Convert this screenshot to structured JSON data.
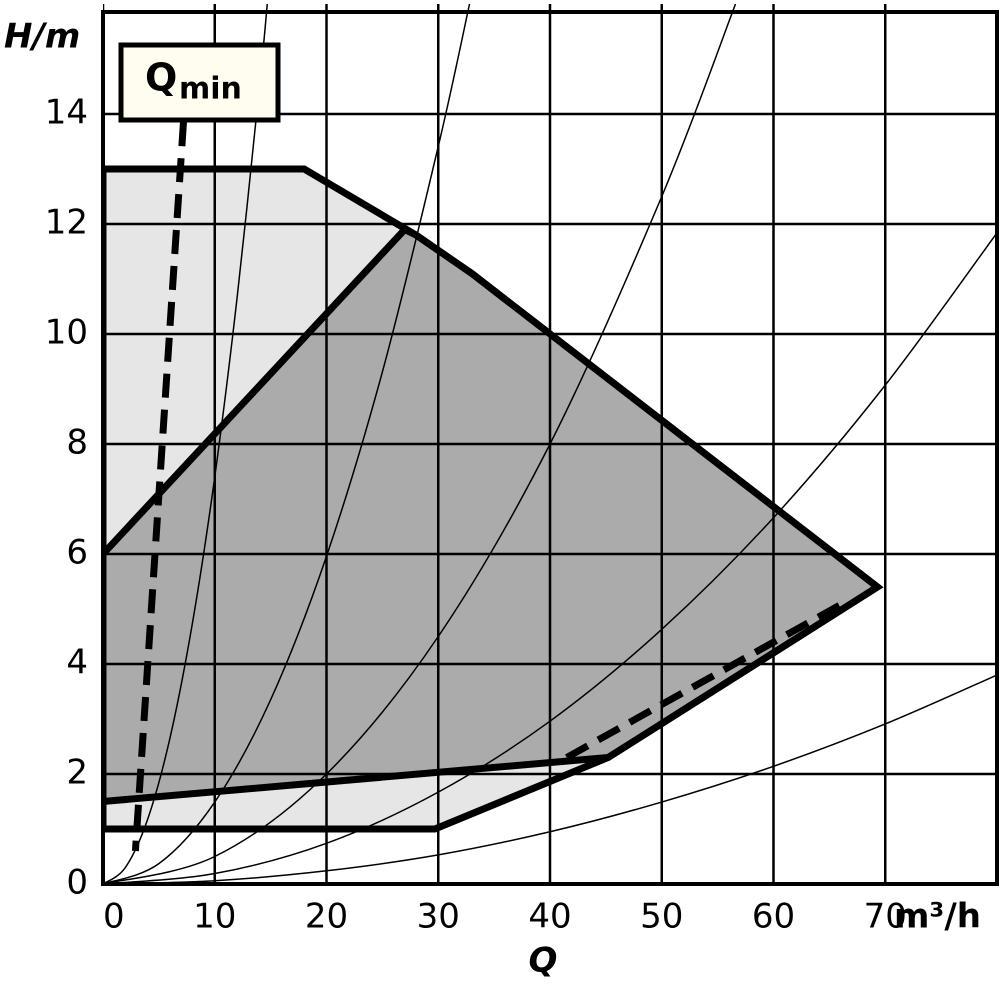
{
  "chart_data": {
    "type": "pump-field",
    "ylabel": "H/m",
    "xlabel": "Q",
    "xunit": "m³/h",
    "annotation": "Q",
    "annotation_sub": "min",
    "xlim": [
      0,
      80
    ],
    "ylim": [
      0,
      16
    ],
    "xticks": [
      0,
      10,
      20,
      30,
      40,
      50,
      60,
      70
    ],
    "yticks": [
      0,
      2,
      4,
      6,
      8,
      10,
      12,
      14
    ],
    "grid": true,
    "series": [
      {
        "kind": "region",
        "color": "#000000",
        "fill": "#e6e6e6",
        "x": [
          0,
          18,
          28,
          33,
          69.3,
          45.2,
          29.7,
          0
        ],
        "values": [
          13,
          13,
          11.8,
          11.1,
          5.4,
          2.3,
          1,
          1
        ]
      },
      {
        "kind": "region",
        "color": "#000000",
        "fill": "#ababab",
        "x": [
          0,
          27,
          28,
          33,
          69.3,
          45.2,
          0
        ],
        "values": [
          6,
          11.9,
          11.8,
          11.1,
          5.4,
          2.3,
          1.5
        ]
      },
      {
        "kind": "curve",
        "color": "#000000",
        "x": [
          0,
          2,
          4,
          6,
          8,
          10,
          12,
          14,
          14.7
        ],
        "values": [
          0,
          0.3,
          1.18,
          2.66,
          4.74,
          7.4,
          10.66,
          14.5,
          16
        ]
      },
      {
        "kind": "curve",
        "color": "#000000",
        "x": [
          0,
          5,
          10,
          15,
          20,
          25,
          30,
          32.8
        ],
        "values": [
          0,
          0.37,
          1.49,
          3.35,
          5.96,
          9.31,
          13.41,
          16
        ]
      },
      {
        "kind": "curve",
        "color": "#000000",
        "x": [
          0,
          10,
          20,
          30,
          40,
          50,
          56.6
        ],
        "values": [
          0,
          0.5,
          2,
          4.5,
          8,
          12.5,
          16
        ]
      },
      {
        "kind": "curve",
        "color": "#000000",
        "x": [
          0,
          10,
          20,
          30,
          40,
          50,
          60,
          70,
          80
        ],
        "values": [
          0,
          0.19,
          0.74,
          1.67,
          2.96,
          4.63,
          6.66,
          9.07,
          11.84
        ]
      },
      {
        "kind": "curve",
        "color": "#000000",
        "x": [
          0,
          10,
          20,
          30,
          40,
          50,
          60,
          70,
          80
        ],
        "values": [
          0,
          0.06,
          0.24,
          0.53,
          0.95,
          1.49,
          2.14,
          2.91,
          3.8
        ]
      },
      {
        "kind": "dashed",
        "color": "#000000",
        "x": [
          7.2,
          2.9
        ],
        "values": [
          13.85,
          0.6
        ]
      },
      {
        "kind": "dashed",
        "color": "#000000",
        "x": [
          41.5,
          66.2
        ],
        "values": [
          2.3,
          5.1
        ]
      }
    ]
  }
}
